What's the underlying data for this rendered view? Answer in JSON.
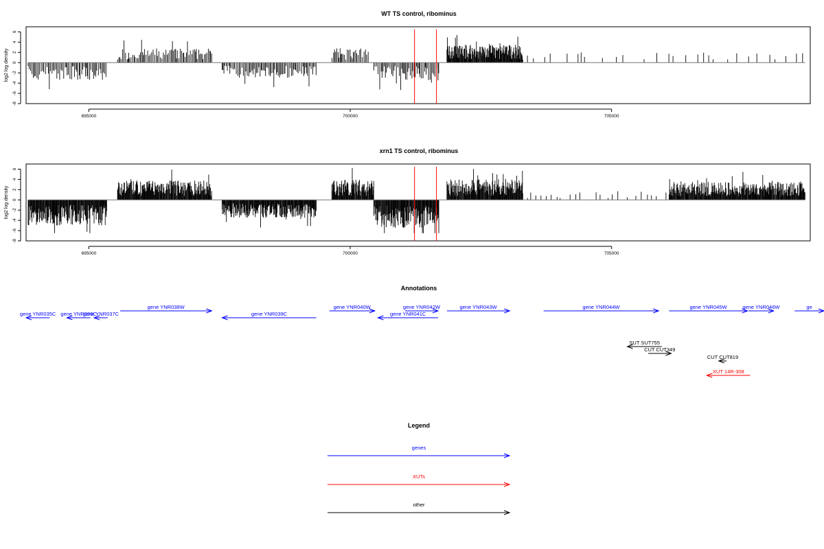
{
  "colors": {
    "genes": "#0000ff",
    "xuts": "#ff0000",
    "other": "#000000",
    "marker": "#ff0000"
  },
  "chart_data": [
    {
      "type": "bar",
      "title": "WT TS control, ribominus",
      "ylabel": "log2 log density",
      "xlim": [
        693800,
        708800
      ],
      "ylim": [
        -8,
        7
      ],
      "xticks": [
        695000,
        700000,
        705000
      ],
      "yticks": [
        6,
        4,
        2,
        0,
        -2,
        -4,
        -6,
        -8
      ],
      "markers_x": [
        701230,
        701650
      ],
      "series": [
        {
          "strand": "minus",
          "x": [
            693840,
            695350
          ],
          "amplitude": 3.5,
          "density": "medium"
        },
        {
          "strand": "plus",
          "x": [
            695550,
            697350
          ],
          "amplitude": 2.8,
          "density": "medium"
        },
        {
          "strand": "minus",
          "x": [
            697550,
            699350
          ],
          "amplitude": 3.0,
          "density": "medium"
        },
        {
          "strand": "plus",
          "x": [
            699650,
            700350
          ],
          "amplitude": 2.8,
          "density": "medium"
        },
        {
          "strand": "minus",
          "x": [
            700450,
            701700
          ],
          "amplitude": 3.5,
          "density": "medium"
        },
        {
          "strand": "plus",
          "x": [
            701850,
            703300
          ],
          "amplitude": 3.5,
          "density": "high"
        },
        {
          "strand": "plus",
          "x": [
            703300,
            708700
          ],
          "amplitude": 2.0,
          "density": "sparse"
        }
      ]
    },
    {
      "type": "bar",
      "title": "xrn1 TS control, ribominus",
      "ylabel": "log2 log density",
      "xlim": [
        693800,
        708800
      ],
      "ylim": [
        -8,
        7
      ],
      "xticks": [
        695000,
        700000,
        705000
      ],
      "yticks": [
        6,
        4,
        2,
        0,
        -2,
        -4,
        -6,
        -8
      ],
      "markers_x": [
        701230,
        701650
      ],
      "series": [
        {
          "strand": "minus",
          "x": [
            693840,
            695350
          ],
          "amplitude": 5.0,
          "density": "high"
        },
        {
          "strand": "plus",
          "x": [
            695550,
            697350
          ],
          "amplitude": 3.8,
          "density": "high"
        },
        {
          "strand": "minus",
          "x": [
            697550,
            699350
          ],
          "amplitude": 3.5,
          "density": "high"
        },
        {
          "strand": "plus",
          "x": [
            699650,
            700450
          ],
          "amplitude": 4.0,
          "density": "high"
        },
        {
          "strand": "minus",
          "x": [
            700450,
            701700
          ],
          "amplitude": 5.5,
          "density": "high"
        },
        {
          "strand": "plus",
          "x": [
            701850,
            703300
          ],
          "amplitude": 4.0,
          "density": "high"
        },
        {
          "strand": "plus",
          "x": [
            703300,
            706100
          ],
          "amplitude": 1.5,
          "density": "sparse"
        },
        {
          "strand": "plus",
          "x": [
            706100,
            708700
          ],
          "amplitude": 3.5,
          "density": "high"
        }
      ]
    }
  ],
  "annotations": {
    "title": "Annotations",
    "features": [
      {
        "label": "gene YNR035C",
        "kind": "genes",
        "strand": "-",
        "start": 693300,
        "end": 694250
      },
      {
        "label": "gene YNR036C",
        "kind": "genes",
        "strand": "-",
        "start": 694580,
        "end": 695030
      },
      {
        "label": "gene YNR037C",
        "kind": "genes",
        "strand": "-",
        "start": 695100,
        "end": 695360
      },
      {
        "label": "gene YNR038W",
        "kind": "genes",
        "strand": "+",
        "start": 695600,
        "end": 697350
      },
      {
        "label": "gene YNR039C",
        "kind": "genes",
        "strand": "-",
        "start": 697550,
        "end": 699350
      },
      {
        "label": "gene YNR040W",
        "kind": "genes",
        "strand": "+",
        "start": 699600,
        "end": 700470
      },
      {
        "label": "gene YNR041C",
        "kind": "genes",
        "strand": "-",
        "start": 700530,
        "end": 701680
      },
      {
        "label": "gene YNR042W",
        "kind": "genes",
        "strand": "+",
        "start": 701050,
        "end": 701680
      },
      {
        "label": "gene YNR043W",
        "kind": "genes",
        "strand": "+",
        "start": 701850,
        "end": 703050
      },
      {
        "label": "gene YNR044W",
        "kind": "genes",
        "strand": "+",
        "start": 703700,
        "end": 705900
      },
      {
        "label": "gene YNR045W",
        "kind": "genes",
        "strand": "+",
        "start": 706100,
        "end": 707600
      },
      {
        "label": "gene YNR046W",
        "kind": "genes",
        "strand": "+",
        "start": 707620,
        "end": 708100
      },
      {
        "label": "ge",
        "kind": "genes",
        "strand": "+",
        "start": 708500,
        "end": 710500
      },
      {
        "label": "SUT SUT755",
        "kind": "other",
        "strand": "-",
        "start": 705300,
        "end": 705960
      },
      {
        "label": "CUT CUT349",
        "kind": "other",
        "strand": "+",
        "start": 705700,
        "end": 706140
      },
      {
        "label": "CUT CUT819",
        "kind": "other",
        "strand": "-",
        "start": 707050,
        "end": 707200
      },
      {
        "label": "XUT 14R-308",
        "kind": "xuts",
        "strand": "-",
        "start": 706820,
        "end": 707650
      }
    ]
  },
  "legend": {
    "title": "Legend",
    "items": [
      {
        "label": "genes",
        "kind": "genes"
      },
      {
        "label": "XUTs",
        "kind": "xuts"
      },
      {
        "label": "other",
        "kind": "other"
      }
    ]
  }
}
